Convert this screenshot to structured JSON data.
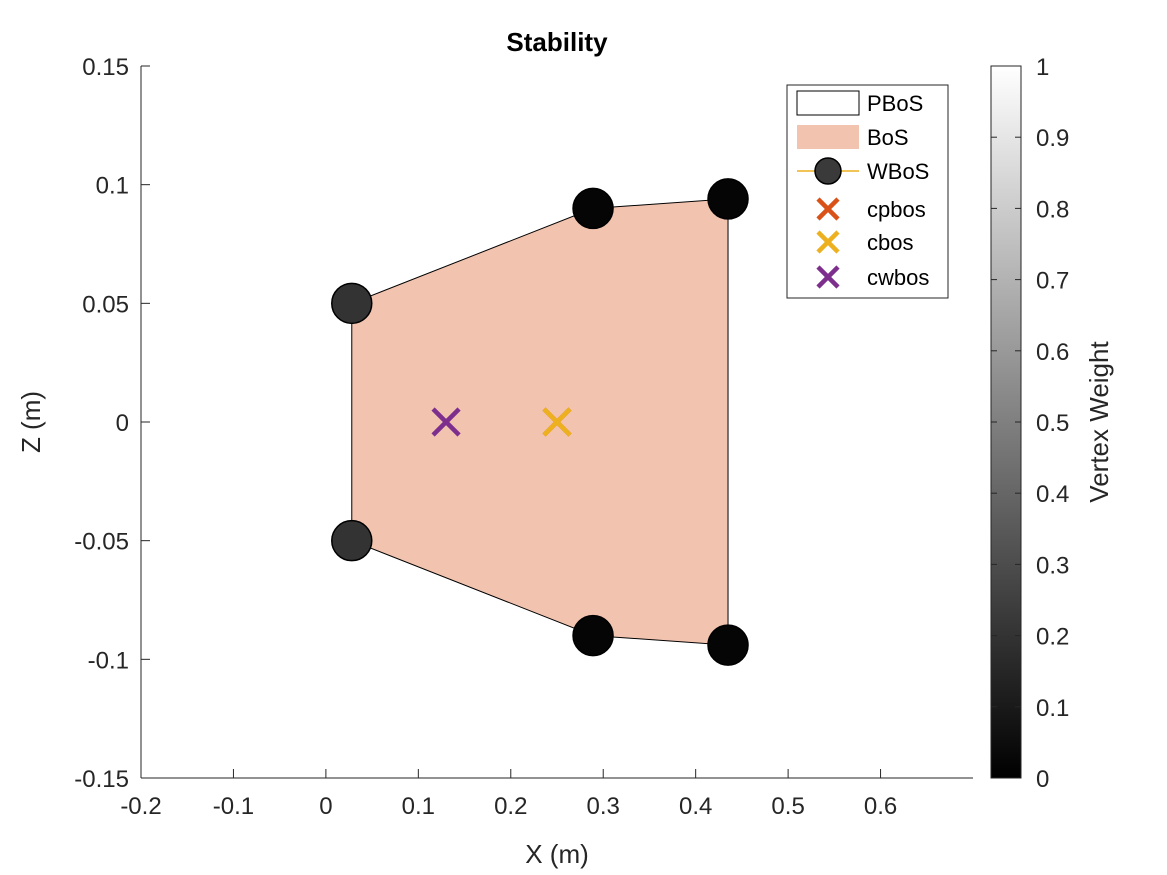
{
  "chart_data": {
    "type": "scatter",
    "title": "Stability",
    "xlabel": "X (m)",
    "ylabel": "Z (m)",
    "xlim": [
      -0.2,
      0.7
    ],
    "ylim": [
      -0.15,
      0.15
    ],
    "xticks": [
      -0.2,
      -0.1,
      0,
      0.1,
      0.2,
      0.3,
      0.4,
      0.5,
      0.6
    ],
    "xtick_labels": [
      "-0.2",
      "-0.1",
      "0",
      "0.1",
      "0.2",
      "0.3",
      "0.4",
      "0.5",
      "0.6"
    ],
    "yticks": [
      -0.15,
      -0.1,
      -0.05,
      0,
      0.05,
      0.1,
      0.15
    ],
    "ytick_labels": [
      "-0.15",
      "-0.1",
      "-0.05",
      "0",
      "0.05",
      "0.1",
      "0.15"
    ],
    "grid": false,
    "legend_position": "top-right",
    "colors": {
      "bos_fill": "#f2c4b0",
      "cpbos": "#d95319",
      "cbos": "#edb120",
      "cwbos": "#7e2f8e",
      "wbos_line": "#edb120"
    },
    "series": [
      {
        "name": "PBoS",
        "type": "polygon-outline",
        "x": [
          0.028,
          0.289,
          0.435,
          0.435,
          0.289,
          0.028
        ],
        "y": [
          0.05,
          0.09,
          0.094,
          -0.094,
          -0.09,
          -0.05
        ]
      },
      {
        "name": "BoS",
        "type": "polygon-fill",
        "x": [
          0.028,
          0.289,
          0.435,
          0.435,
          0.289,
          0.028
        ],
        "y": [
          0.05,
          0.09,
          0.094,
          -0.094,
          -0.09,
          -0.05
        ]
      },
      {
        "name": "WBoS",
        "type": "scatter",
        "x": [
          0.028,
          0.289,
          0.435,
          0.028,
          0.289,
          0.435
        ],
        "y": [
          0.05,
          0.09,
          0.094,
          -0.05,
          -0.09,
          -0.094
        ],
        "weights": [
          0.2,
          0.02,
          0.02,
          0.2,
          0.02,
          0.02
        ]
      },
      {
        "name": "cpbos",
        "type": "marker-x",
        "x": [
          0.25
        ],
        "y": [
          0.0
        ]
      },
      {
        "name": "cbos",
        "type": "marker-x",
        "x": [
          0.25
        ],
        "y": [
          0.0
        ]
      },
      {
        "name": "cwbos",
        "type": "marker-x",
        "x": [
          0.13
        ],
        "y": [
          0.0
        ]
      }
    ],
    "colorbar": {
      "label": "Vertex Weight",
      "range": [
        0,
        1
      ],
      "ticks": [
        0,
        0.1,
        0.2,
        0.3,
        0.4,
        0.5,
        0.6,
        0.7,
        0.8,
        0.9,
        1
      ],
      "tick_labels": [
        "0",
        "0.1",
        "0.2",
        "0.3",
        "0.4",
        "0.5",
        "0.6",
        "0.7",
        "0.8",
        "0.9",
        "1"
      ]
    }
  }
}
